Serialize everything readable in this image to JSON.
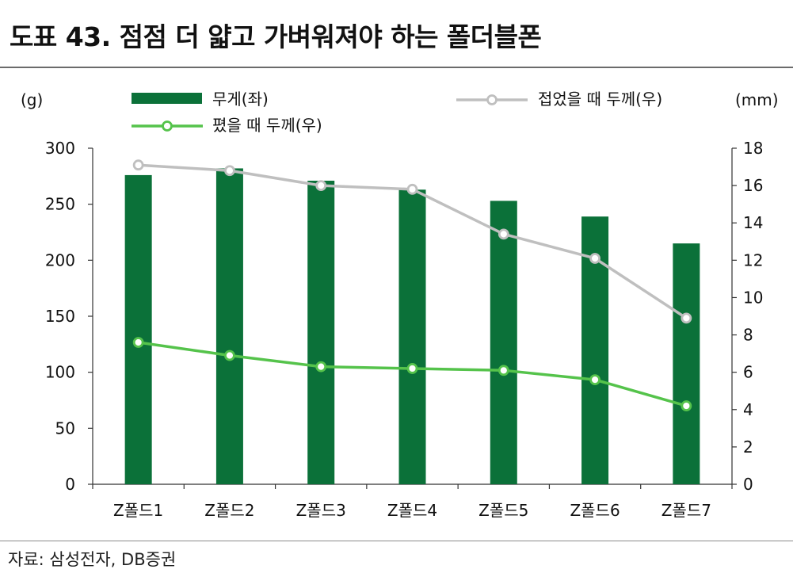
{
  "title": "도표 43. 점점 더 얇고 가벼워져야 하는 폴더블폰",
  "source": "자료: 삼성전자, DB증권",
  "colors": {
    "bar": "#0b7139",
    "line_unfolded": "#55c34b",
    "line_folded": "#bfbfbf"
  },
  "chart_data": {
    "type": "bar",
    "categories": [
      "Z폴드1",
      "Z폴드2",
      "Z폴드3",
      "Z폴드4",
      "Z폴드5",
      "Z폴드6",
      "Z폴드7"
    ],
    "y_left": {
      "label": "(g)",
      "range": [
        0,
        300
      ],
      "ticks": [
        "0",
        "50",
        "100",
        "150",
        "200",
        "250",
        "300"
      ]
    },
    "y_right": {
      "label": "(mm)",
      "range": [
        0,
        18
      ],
      "ticks": [
        "0",
        "2",
        "4",
        "6",
        "8",
        "10",
        "12",
        "14",
        "16",
        "18"
      ]
    },
    "series": [
      {
        "name": "무게(좌)",
        "type": "bar",
        "axis": "left",
        "values": [
          276,
          282,
          271,
          263,
          253,
          239,
          215
        ]
      },
      {
        "name": "접었을 때 두께(우)",
        "type": "line",
        "axis": "right",
        "values": [
          17.1,
          16.8,
          16.0,
          15.8,
          13.4,
          12.1,
          8.9
        ]
      },
      {
        "name": "폈을 때 두께(우)",
        "type": "line",
        "axis": "right",
        "values": [
          7.6,
          6.9,
          6.3,
          6.2,
          6.1,
          5.6,
          4.2
        ]
      }
    ],
    "legend": [
      "무게(좌)",
      "접었을 때 두께(우)",
      "폈을 때 두께(우)"
    ]
  }
}
